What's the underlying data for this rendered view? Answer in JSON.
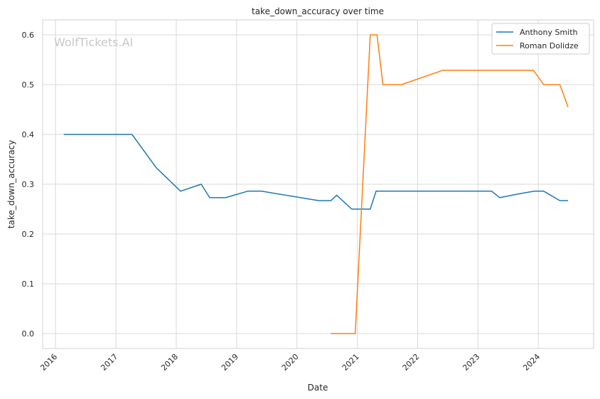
{
  "watermark": "WolfTickets.AI",
  "chart_data": {
    "type": "line",
    "title": "take_down_accuracy over time",
    "xlabel": "Date",
    "ylabel": "take_down_accuracy",
    "xlim": [
      "2015-10-15",
      "2024-12-01"
    ],
    "ylim": [
      -0.03,
      0.63
    ],
    "x_ticks": [
      "2016",
      "2017",
      "2018",
      "2019",
      "2020",
      "2021",
      "2022",
      "2023",
      "2024"
    ],
    "y_ticks": [
      "0.0",
      "0.1",
      "0.2",
      "0.3",
      "0.4",
      "0.5",
      "0.6"
    ],
    "grid": true,
    "legend_position": "top-right",
    "series": [
      {
        "name": "Anthony Smith",
        "color": "#1f77b4",
        "points": [
          [
            "2016-02-20",
            0.4
          ],
          [
            "2017-04-08",
            0.4
          ],
          [
            "2017-09-02",
            0.333
          ],
          [
            "2018-01-27",
            0.286
          ],
          [
            "2018-06-01",
            0.3
          ],
          [
            "2018-07-22",
            0.273
          ],
          [
            "2018-10-27",
            0.273
          ],
          [
            "2019-03-09",
            0.286
          ],
          [
            "2019-06-01",
            0.286
          ],
          [
            "2020-05-13",
            0.267
          ],
          [
            "2020-07-25",
            0.267
          ],
          [
            "2020-08-29",
            0.278
          ],
          [
            "2020-11-28",
            0.25
          ],
          [
            "2021-03-20",
            0.25
          ],
          [
            "2021-04-24",
            0.286
          ],
          [
            "2023-03-25",
            0.286
          ],
          [
            "2023-05-13",
            0.273
          ],
          [
            "2023-08-26",
            0.28
          ],
          [
            "2023-12-09",
            0.286
          ],
          [
            "2024-02-03",
            0.286
          ],
          [
            "2024-05-11",
            0.267
          ],
          [
            "2024-06-29",
            0.267
          ]
        ]
      },
      {
        "name": "Roman Dolidze",
        "color": "#ff7f0e",
        "points": [
          [
            "2020-07-25",
            0.0
          ],
          [
            "2020-12-19",
            0.0
          ],
          [
            "2021-03-20",
            0.6
          ],
          [
            "2021-04-30",
            0.6
          ],
          [
            "2021-06-05",
            0.5
          ],
          [
            "2021-09-25",
            0.5
          ],
          [
            "2022-06-04",
            0.529
          ],
          [
            "2023-12-02",
            0.529
          ],
          [
            "2024-02-03",
            0.5
          ],
          [
            "2024-05-11",
            0.5
          ],
          [
            "2024-06-29",
            0.455
          ]
        ]
      }
    ]
  }
}
